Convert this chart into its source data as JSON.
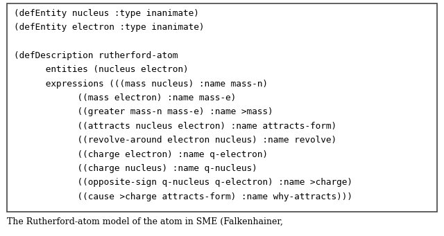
{
  "lines": [
    "(defEntity nucleus :type inanimate)",
    "(defEntity electron :type inanimate)",
    "",
    "(defDescription rutherford-atom",
    "      entities (nucleus electron)",
    "      expressions (((mass nucleus) :name mass-n)",
    "            ((mass electron) :name mass-e)",
    "            ((greater mass-n mass-e) :name >mass)",
    "            ((attracts nucleus electron) :name attracts-form)",
    "            ((revolve-around electron nucleus) :name revolve)",
    "            ((charge electron) :name q-electron)",
    "            ((charge nucleus) :name q-nucleus)",
    "            ((opposite-sign q-nucleus q-electron) :name >charge)",
    "            ((cause >charge attracts-form) :name why-attracts)))"
  ],
  "caption": "The Rutherford-atom model of the atom in SME (Falkenhainer,",
  "box_bg": "#ffffff",
  "box_edge": "#444444",
  "fig_bg": "#ffffff",
  "font_size": 9.2,
  "caption_font_size": 9.0,
  "font_family": "monospace"
}
